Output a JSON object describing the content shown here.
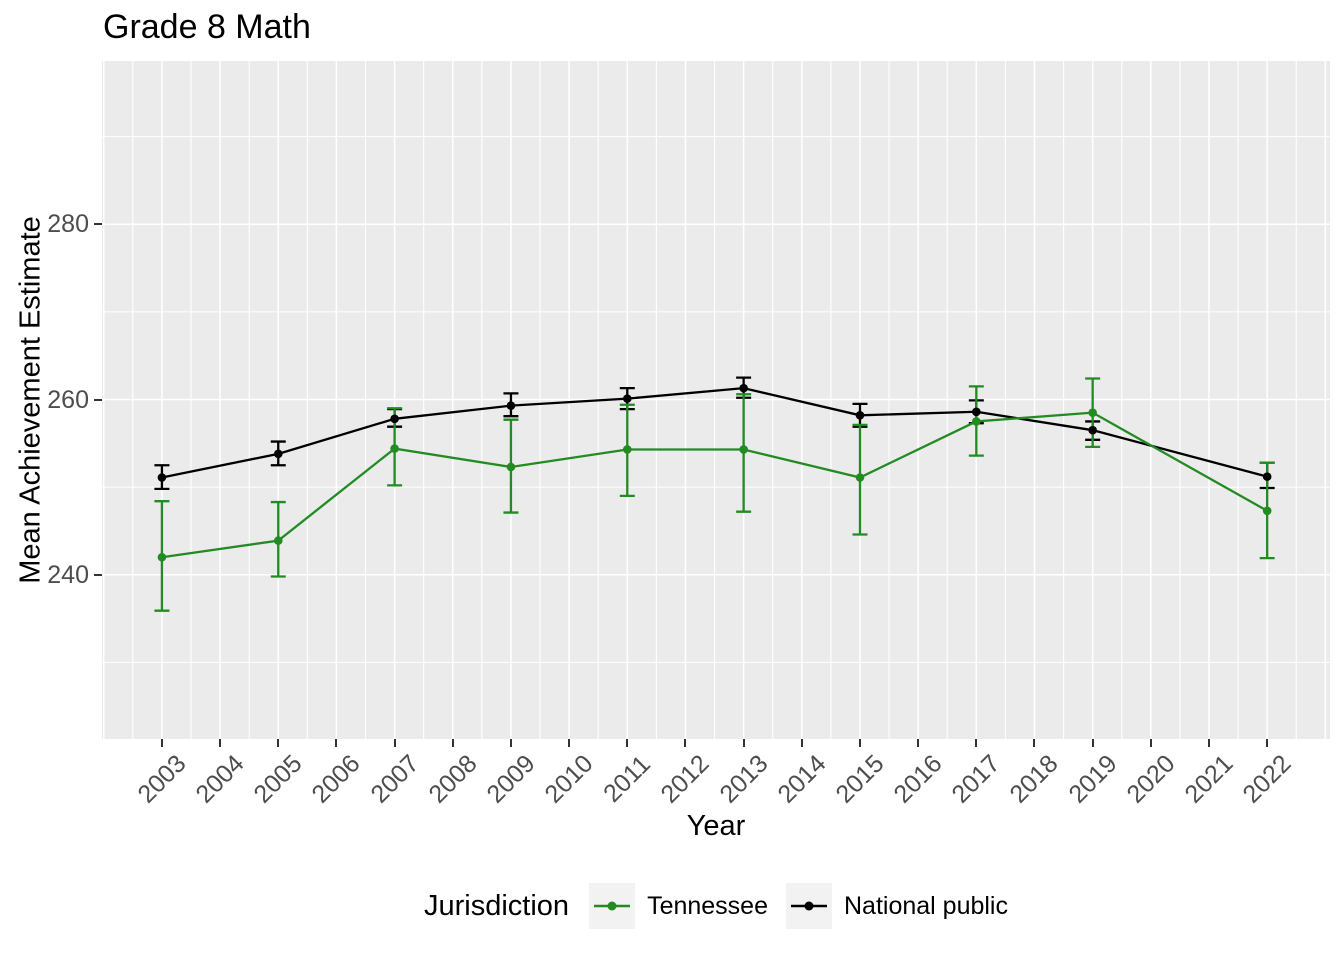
{
  "title": "Grade 8 Math",
  "colors": {
    "tennessee": "#228B22",
    "national_public": "#000000",
    "panel_background": "#EBEBEB",
    "grid": "#FFFFFF",
    "tick_label": "#4D4D4D",
    "tick_mark": "#333333",
    "legend_key_background": "#F2F2F2"
  },
  "chart_data": {
    "type": "line",
    "title": "Grade 8 Math",
    "xlabel": "Year",
    "ylabel": "Mean Achievement Estimate",
    "legend_title": "Jurisdiction",
    "legend_position": "bottom",
    "grid": true,
    "error_bars": true,
    "x_ticks": [
      2003,
      2004,
      2005,
      2006,
      2007,
      2008,
      2009,
      2010,
      2011,
      2012,
      2013,
      2014,
      2015,
      2016,
      2017,
      2018,
      2019,
      2020,
      2021,
      2022
    ],
    "y_ticks": [
      240,
      260,
      280
    ],
    "y_minor_ticks": [
      230,
      250,
      270,
      290
    ],
    "x_view_range": [
      2001.97,
      2023.08
    ],
    "y_view_range": [
      221.26,
      298.63
    ],
    "x": [
      2003,
      2005,
      2007,
      2009,
      2011,
      2013,
      2015,
      2017,
      2019,
      2022
    ],
    "series": [
      {
        "name": "Tennessee",
        "color": "#228B22",
        "values": [
          242.0,
          243.9,
          254.4,
          252.3,
          254.3,
          254.3,
          251.1,
          257.5,
          258.5,
          247.3
        ],
        "ci_low": [
          235.9,
          239.8,
          250.2,
          247.1,
          249.0,
          247.2,
          244.6,
          253.6,
          254.6,
          241.9
        ],
        "ci_high": [
          248.4,
          248.3,
          259.0,
          257.7,
          259.4,
          260.6,
          257.1,
          261.5,
          262.4,
          252.8
        ]
      },
      {
        "name": "National public",
        "color": "#000000",
        "values": [
          251.1,
          253.8,
          257.8,
          259.3,
          260.1,
          261.3,
          258.2,
          258.6,
          256.5,
          251.2
        ],
        "ci_low": [
          249.8,
          252.5,
          256.9,
          258.1,
          258.9,
          260.2,
          256.9,
          257.3,
          255.4,
          249.9
        ],
        "ci_high": [
          252.5,
          255.2,
          258.9,
          260.7,
          261.3,
          262.5,
          259.5,
          259.9,
          257.5,
          252.8
        ]
      }
    ]
  }
}
